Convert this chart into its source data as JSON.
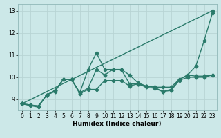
{
  "xlabel": "Humidex (Indice chaleur)",
  "ylabel": "",
  "xlim": [
    -0.5,
    23.5
  ],
  "ylim": [
    8.5,
    13.3
  ],
  "yticks": [
    9,
    10,
    11,
    12,
    13
  ],
  "xticks": [
    0,
    1,
    2,
    3,
    4,
    5,
    6,
    7,
    8,
    9,
    10,
    11,
    12,
    13,
    14,
    15,
    16,
    17,
    18,
    19,
    20,
    21,
    22,
    23
  ],
  "bg_color": "#cce8e8",
  "grid_color": "#b8d4d4",
  "line_color": "#2a7a6a",
  "line_width": 1.0,
  "marker": "D",
  "marker_size": 2.5,
  "lines": [
    {
      "x": [
        0,
        23
      ],
      "y": [
        8.8,
        13.0
      ]
    },
    {
      "x": [
        0,
        1,
        2,
        3,
        4,
        5,
        6,
        7,
        8,
        9,
        10,
        11,
        12,
        13,
        14,
        15,
        16,
        17,
        18,
        19,
        20,
        21,
        22,
        23
      ],
      "y": [
        8.8,
        8.75,
        8.7,
        9.2,
        9.4,
        9.9,
        9.9,
        9.3,
        9.5,
        10.35,
        10.1,
        10.35,
        10.35,
        10.1,
        9.75,
        9.6,
        9.55,
        9.55,
        9.55,
        9.9,
        10.1,
        10.05,
        10.05,
        10.1
      ]
    },
    {
      "x": [
        0,
        1,
        2,
        3,
        4,
        5,
        6,
        7,
        8,
        9,
        10,
        11,
        12,
        13,
        14,
        15,
        16,
        17,
        18,
        19,
        20,
        21,
        22,
        23
      ],
      "y": [
        8.8,
        8.75,
        8.7,
        9.2,
        9.4,
        9.9,
        9.9,
        9.3,
        10.35,
        11.1,
        10.35,
        10.35,
        10.35,
        9.7,
        9.7,
        9.6,
        9.55,
        9.35,
        9.45,
        9.9,
        10.1,
        10.5,
        11.65,
        12.9
      ]
    },
    {
      "x": [
        0,
        1,
        2,
        3,
        4,
        5,
        6,
        7,
        8,
        9,
        10,
        11,
        12,
        13,
        14,
        15,
        16,
        17,
        18,
        19,
        20,
        21,
        22,
        23
      ],
      "y": [
        8.8,
        8.72,
        8.65,
        9.2,
        9.35,
        9.9,
        9.9,
        9.25,
        9.45,
        9.45,
        9.85,
        9.85,
        9.85,
        9.6,
        9.7,
        9.55,
        9.5,
        9.35,
        9.4,
        9.85,
        10.0,
        10.0,
        10.0,
        10.1
      ]
    }
  ]
}
